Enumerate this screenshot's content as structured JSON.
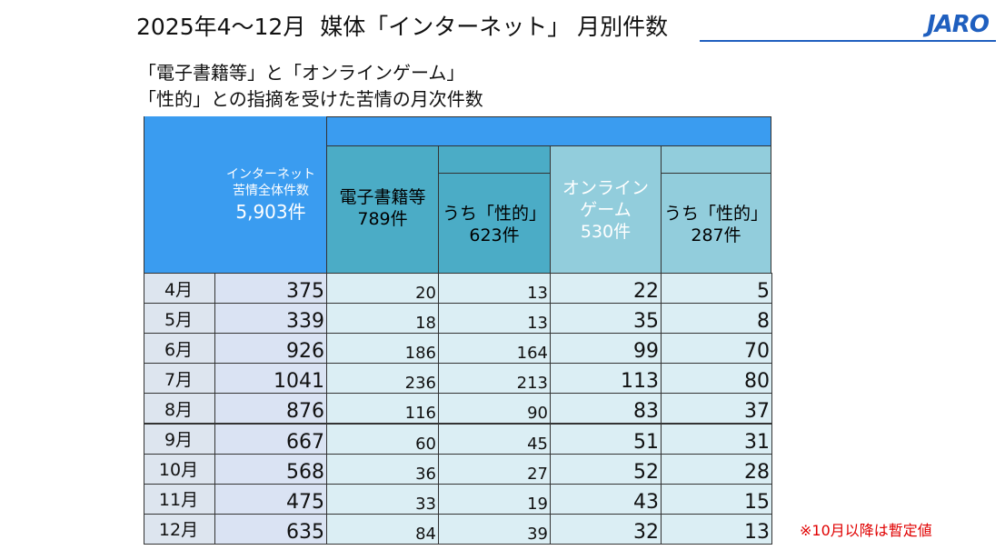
{
  "header": {
    "title": "2025年4～12月  媒体「インターネット」 月別件数",
    "logo": "JARO"
  },
  "subtitle": [
    "「電子書籍等」と「オンラインゲーム」",
    "「性的」との指摘を受けた苦情の月次件数"
  ],
  "table": {
    "header": {
      "total": [
        "インターネット",
        "苦情全体件数",
        "5,903件"
      ],
      "ebook": [
        "電子書籍等",
        "789件"
      ],
      "ebook_sexual": [
        "うち「性的」",
        "623件"
      ],
      "game": [
        "オンライン",
        "ゲーム",
        "530件"
      ],
      "game_sexual": [
        "うち「性的」",
        "287件"
      ]
    },
    "rows": [
      [
        "4月",
        375,
        20,
        13,
        22,
        5
      ],
      [
        "5月",
        339,
        18,
        13,
        35,
        8
      ],
      [
        "6月",
        926,
        186,
        164,
        99,
        70
      ],
      [
        "7月",
        1041,
        236,
        213,
        113,
        80
      ],
      [
        "8月",
        876,
        116,
        90,
        83,
        37
      ],
      [
        "9月",
        667,
        60,
        45,
        51,
        31
      ],
      [
        "10月",
        568,
        36,
        27,
        52,
        28
      ],
      [
        "11月",
        475,
        33,
        19,
        43,
        15
      ],
      [
        "12月",
        635,
        84,
        39,
        32,
        13
      ]
    ]
  },
  "note": "※10月以降は暫定値"
}
